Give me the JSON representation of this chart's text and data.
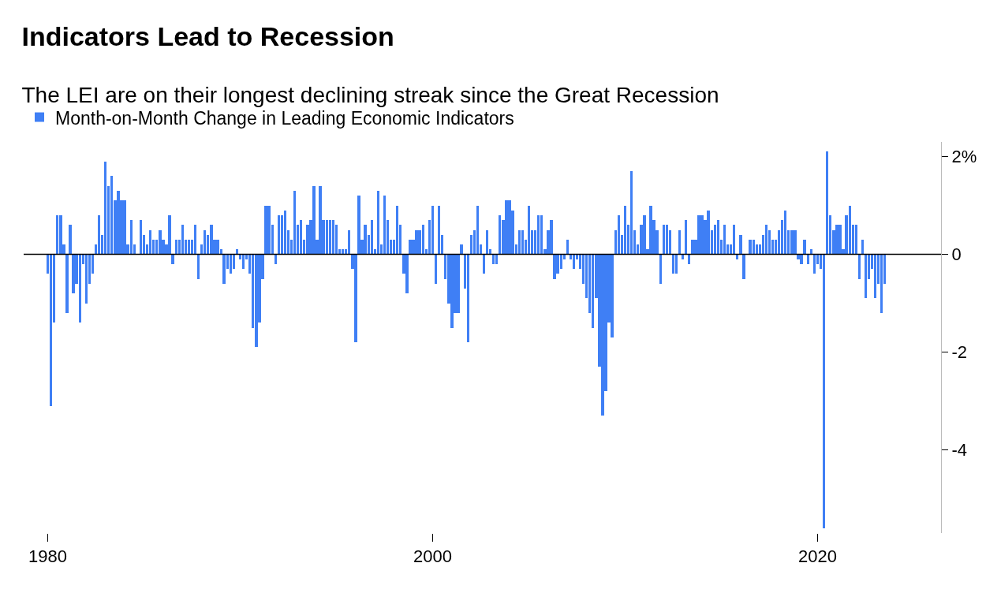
{
  "chart_data": {
    "type": "bar",
    "title": "Indicators Lead to Recession",
    "subtitle": "The LEI are on their longest declining streak since the Great Recession",
    "x": [
      "1980-01",
      "1980-03",
      "1980-05",
      "1980-07",
      "1980-09",
      "1980-11",
      "1981-01",
      "1981-03",
      "1981-05",
      "1981-07",
      "1981-09",
      "1981-11",
      "1982-01",
      "1982-03",
      "1982-05",
      "1982-07",
      "1982-09",
      "1982-11",
      "1983-01",
      "1983-03",
      "1983-05",
      "1983-07",
      "1983-09",
      "1983-11",
      "1984-01",
      "1984-03",
      "1984-05",
      "1984-07",
      "1984-09",
      "1984-11",
      "1985-01",
      "1985-03",
      "1985-05",
      "1985-07",
      "1985-09",
      "1985-11",
      "1986-01",
      "1986-03",
      "1986-05",
      "1986-07",
      "1986-09",
      "1986-11",
      "1987-01",
      "1987-03",
      "1987-05",
      "1987-07",
      "1987-09",
      "1987-11",
      "1988-01",
      "1988-03",
      "1988-05",
      "1988-07",
      "1988-09",
      "1988-11",
      "1989-01",
      "1989-03",
      "1989-05",
      "1989-07",
      "1989-09",
      "1989-11",
      "1990-01",
      "1990-03",
      "1990-05",
      "1990-07",
      "1990-09",
      "1990-11",
      "1991-01",
      "1991-03",
      "1991-05",
      "1991-07",
      "1991-09",
      "1991-11",
      "1992-01",
      "1992-03",
      "1992-05",
      "1992-07",
      "1992-09",
      "1992-11",
      "1993-01",
      "1993-03",
      "1993-05",
      "1993-07",
      "1993-09",
      "1993-11",
      "1994-01",
      "1994-03",
      "1994-05",
      "1994-07",
      "1994-09",
      "1994-11",
      "1995-01",
      "1995-03",
      "1995-05",
      "1995-07",
      "1995-09",
      "1995-11",
      "1996-01",
      "1996-03",
      "1996-05",
      "1996-07",
      "1996-09",
      "1996-11",
      "1997-01",
      "1997-03",
      "1997-05",
      "1997-07",
      "1997-09",
      "1997-11",
      "1998-01",
      "1998-03",
      "1998-05",
      "1998-07",
      "1998-09",
      "1998-11",
      "1999-01",
      "1999-03",
      "1999-05",
      "1999-07",
      "1999-09",
      "1999-11",
      "2000-01",
      "2000-03",
      "2000-05",
      "2000-07",
      "2000-09",
      "2000-11",
      "2001-01",
      "2001-03",
      "2001-05",
      "2001-07",
      "2001-09",
      "2001-11",
      "2002-01",
      "2002-03",
      "2002-05",
      "2002-07",
      "2002-09",
      "2002-11",
      "2003-01",
      "2003-03",
      "2003-05",
      "2003-07",
      "2003-09",
      "2003-11",
      "2004-01",
      "2004-03",
      "2004-05",
      "2004-07",
      "2004-09",
      "2004-11",
      "2005-01",
      "2005-03",
      "2005-05",
      "2005-07",
      "2005-09",
      "2005-11",
      "2006-01",
      "2006-03",
      "2006-05",
      "2006-07",
      "2006-09",
      "2006-11",
      "2007-01",
      "2007-03",
      "2007-05",
      "2007-07",
      "2007-09",
      "2007-11",
      "2008-01",
      "2008-03",
      "2008-05",
      "2008-07",
      "2008-09",
      "2008-11",
      "2009-01",
      "2009-03",
      "2009-05",
      "2009-07",
      "2009-09",
      "2009-11",
      "2010-01",
      "2010-03",
      "2010-05",
      "2010-07",
      "2010-09",
      "2010-11",
      "2011-01",
      "2011-03",
      "2011-05",
      "2011-07",
      "2011-09",
      "2011-11",
      "2012-01",
      "2012-03",
      "2012-05",
      "2012-07",
      "2012-09",
      "2012-11",
      "2013-01",
      "2013-03",
      "2013-05",
      "2013-07",
      "2013-09",
      "2013-11",
      "2014-01",
      "2014-03",
      "2014-05",
      "2014-07",
      "2014-09",
      "2014-11",
      "2015-01",
      "2015-03",
      "2015-05",
      "2015-07",
      "2015-09",
      "2015-11",
      "2016-01",
      "2016-03",
      "2016-05",
      "2016-07",
      "2016-09",
      "2016-11",
      "2017-01",
      "2017-03",
      "2017-05",
      "2017-07",
      "2017-09",
      "2017-11",
      "2018-01",
      "2018-03",
      "2018-05",
      "2018-07",
      "2018-09",
      "2018-11",
      "2019-01",
      "2019-03",
      "2019-05",
      "2019-07",
      "2019-09",
      "2019-11",
      "2020-01",
      "2020-03",
      "2020-05",
      "2020-07",
      "2020-09",
      "2020-11",
      "2021-01",
      "2021-03",
      "2021-05",
      "2021-07",
      "2021-09",
      "2021-11",
      "2022-01",
      "2022-03",
      "2022-05",
      "2022-07",
      "2022-09",
      "2022-11",
      "2023-01",
      "2023-03",
      "2023-05",
      "2023-07"
    ],
    "series": [
      {
        "name": "Month-on-Month Change in Leading Economic Indicators",
        "color": "#3f7ff5",
        "values": [
          -0.4,
          -3.1,
          -1.4,
          0.8,
          0.8,
          0.2,
          -1.2,
          0.6,
          -0.8,
          -0.6,
          -1.4,
          -0.2,
          -1.0,
          -0.6,
          -0.4,
          0.2,
          0.8,
          0.4,
          1.9,
          1.4,
          1.6,
          1.1,
          1.3,
          1.1,
          1.1,
          0.2,
          0.7,
          0.2,
          0.0,
          0.7,
          0.4,
          0.2,
          0.5,
          0.3,
          0.3,
          0.5,
          0.3,
          0.2,
          0.8,
          -0.2,
          0.3,
          0.3,
          0.6,
          0.3,
          0.3,
          0.3,
          0.6,
          -0.5,
          0.2,
          0.5,
          0.4,
          0.6,
          0.3,
          0.3,
          0.1,
          -0.6,
          -0.3,
          -0.4,
          -0.3,
          0.1,
          -0.1,
          -0.3,
          -0.1,
          -0.4,
          -1.5,
          -1.9,
          -1.4,
          -0.5,
          1.0,
          1.0,
          0.6,
          -0.2,
          0.8,
          0.8,
          0.9,
          0.5,
          0.3,
          1.3,
          0.6,
          0.7,
          0.3,
          0.6,
          0.7,
          1.4,
          0.3,
          1.4,
          0.7,
          0.7,
          0.7,
          0.7,
          0.6,
          0.1,
          0.1,
          0.1,
          0.5,
          -0.3,
          -1.8,
          1.2,
          0.3,
          0.6,
          0.4,
          0.7,
          0.1,
          1.3,
          0.2,
          1.2,
          0.7,
          0.3,
          0.3,
          1.0,
          0.6,
          -0.4,
          -0.8,
          0.3,
          0.3,
          0.5,
          0.5,
          0.6,
          0.1,
          0.7,
          1.0,
          -0.6,
          1.0,
          0.4,
          -0.5,
          -1.0,
          -1.5,
          -1.2,
          -1.2,
          0.2,
          -0.7,
          -1.8,
          0.4,
          0.5,
          1.0,
          0.2,
          -0.4,
          0.5,
          0.1,
          -0.2,
          -0.2,
          0.8,
          0.7,
          1.1,
          1.1,
          0.9,
          0.2,
          0.5,
          0.5,
          0.3,
          1.0,
          0.5,
          0.5,
          0.8,
          0.8,
          0.1,
          0.5,
          0.7,
          -0.5,
          -0.4,
          -0.3,
          -0.1,
          0.3,
          -0.1,
          -0.3,
          -0.1,
          -0.3,
          -0.6,
          -0.9,
          -1.2,
          -1.5,
          -0.9,
          -2.3,
          -3.3,
          -2.8,
          -1.4,
          -1.7,
          0.5,
          0.8,
          0.4,
          1.0,
          0.6,
          1.7,
          0.5,
          0.2,
          0.6,
          0.8,
          0.1,
          1.0,
          0.7,
          0.5,
          -0.6,
          0.6,
          0.6,
          0.5,
          -0.4,
          -0.4,
          0.5,
          -0.1,
          0.7,
          -0.2,
          0.3,
          0.3,
          0.8,
          0.8,
          0.7,
          0.9,
          0.5,
          0.6,
          0.7,
          0.3,
          0.6,
          0.2,
          0.2,
          0.6,
          -0.1,
          0.4,
          -0.5,
          0.0,
          0.3,
          0.3,
          0.2,
          0.2,
          0.4,
          0.6,
          0.5,
          0.3,
          0.3,
          0.5,
          0.7,
          0.9,
          0.5,
          0.5,
          0.5,
          -0.1,
          -0.2,
          0.3,
          -0.2,
          0.1,
          -0.4,
          -0.2,
          -0.3,
          -5.6,
          2.1,
          0.8,
          0.5,
          0.6,
          0.6,
          0.1,
          0.8,
          1.0,
          0.6,
          0.6,
          -0.5,
          0.3,
          -0.9,
          -0.5,
          -0.3,
          -0.9,
          -0.6,
          -1.2,
          -0.6
        ]
      }
    ],
    "xlim": [
      "1978-10",
      "2026-06"
    ],
    "xticks": [
      {
        "value": "1980-01-01",
        "label": "1980"
      },
      {
        "value": "2000-01-01",
        "label": "2000"
      },
      {
        "value": "2020-01-01",
        "label": "2020"
      }
    ],
    "ylim": [
      -5.7,
      2.3
    ],
    "yticks": [
      {
        "value": 2,
        "label": "2%"
      },
      0,
      -2,
      -4
    ],
    "ref_lines": [
      {
        "axis": "y",
        "value": 0,
        "color": "#000000"
      }
    ],
    "legend": "top left"
  }
}
